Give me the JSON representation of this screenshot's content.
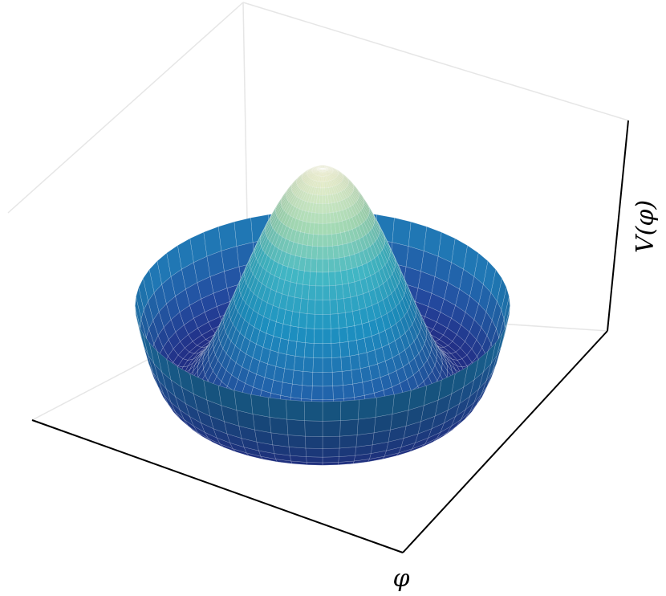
{
  "chart_data": {
    "type": "surface",
    "xlabel": "φ",
    "zlabel": "V(φ)"
  }
}
